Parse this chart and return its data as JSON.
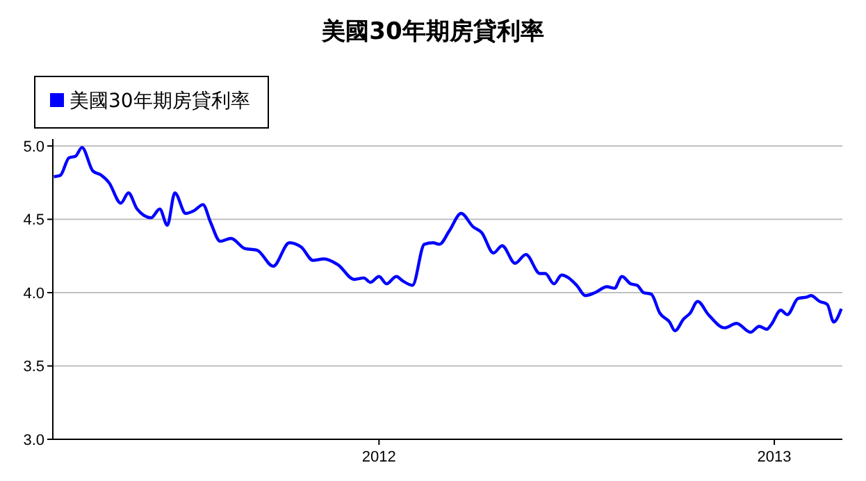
{
  "chart_data": {
    "type": "line",
    "title": "美國30年期房貸利率",
    "x": [
      "2011-03-06",
      "2011-03-12",
      "2011-03-20",
      "2011-03-26",
      "2011-04-01",
      "2011-04-11",
      "2011-04-19",
      "2011-04-26",
      "2011-05-07",
      "2011-05-14",
      "2011-05-22",
      "2011-06-04",
      "2011-06-12",
      "2011-06-19",
      "2011-06-26",
      "2011-07-06",
      "2011-07-14",
      "2011-07-22",
      "2011-07-29",
      "2011-08-07",
      "2011-08-17",
      "2011-08-30",
      "2011-09-10",
      "2011-09-25",
      "2011-10-10",
      "2011-10-21",
      "2011-11-01",
      "2011-11-11",
      "2011-11-24",
      "2011-12-09",
      "2011-12-18",
      "2011-12-24",
      "2012-01-01",
      "2012-01-08",
      "2012-01-17",
      "2012-01-23",
      "2012-02-01",
      "2012-02-12",
      "2012-02-20",
      "2012-02-26",
      "2012-03-06",
      "2012-03-17",
      "2012-03-28",
      "2012-04-05",
      "2012-04-16",
      "2012-04-24",
      "2012-05-06",
      "2012-05-16",
      "2012-05-29",
      "2012-06-03",
      "2012-06-11",
      "2012-06-18",
      "2012-07-02",
      "2012-07-10",
      "2012-07-19",
      "2012-07-30",
      "2012-08-06",
      "2012-08-13",
      "2012-08-21",
      "2012-08-27",
      "2012-09-02",
      "2012-09-09",
      "2012-09-17",
      "2012-09-26",
      "2012-10-01",
      "2012-10-09",
      "2012-10-15",
      "2012-10-22",
      "2012-11-01",
      "2012-11-16",
      "2012-11-27",
      "2012-12-10",
      "2012-12-18",
      "2012-12-25",
      "2012-12-29",
      "2013-01-07",
      "2013-01-13",
      "2013-01-23",
      "2013-01-31",
      "2013-02-04",
      "2013-02-12",
      "2013-02-19",
      "2013-02-25",
      "2013-03-04"
    ],
    "series": [
      {
        "name": "美國30年期房貸利率",
        "color": "#0000ff",
        "values": [
          4.79,
          4.8,
          4.92,
          4.93,
          4.99,
          4.83,
          4.8,
          4.75,
          4.61,
          4.68,
          4.57,
          4.51,
          4.57,
          4.46,
          4.68,
          4.54,
          4.56,
          4.6,
          4.48,
          4.35,
          4.37,
          4.3,
          4.29,
          4.18,
          4.34,
          4.31,
          4.22,
          4.23,
          4.19,
          4.09,
          4.1,
          4.07,
          4.11,
          4.06,
          4.11,
          4.08,
          4.05,
          4.33,
          4.34,
          4.33,
          4.42,
          4.54,
          4.45,
          4.41,
          4.27,
          4.32,
          4.2,
          4.26,
          4.13,
          4.13,
          4.06,
          4.12,
          4.05,
          3.98,
          4.0,
          4.04,
          4.03,
          4.11,
          4.06,
          4.05,
          4.0,
          3.99,
          3.86,
          3.8,
          3.74,
          3.82,
          3.86,
          3.94,
          3.85,
          3.76,
          3.79,
          3.73,
          3.77,
          3.75,
          3.78,
          3.88,
          3.85,
          3.96,
          3.97,
          3.98,
          3.94,
          3.92,
          3.8,
          3.89
        ]
      }
    ],
    "xlim": [
      "2011-03-05",
      "2013-03-05"
    ],
    "xticks": [
      {
        "value": "2012-01-01",
        "label": "2012"
      },
      {
        "value": "2013-01-01",
        "label": "2013"
      }
    ],
    "ylim": [
      3.0,
      5.0
    ],
    "yticks": [
      {
        "value": 3.0,
        "label": "3.0"
      },
      {
        "value": 3.5,
        "label": "3.5"
      },
      {
        "value": 4.0,
        "label": "4.0"
      },
      {
        "value": 4.5,
        "label": "4.5"
      },
      {
        "value": 5.0,
        "label": "5.0"
      }
    ],
    "grid": "y",
    "legend": "top left",
    "marker": "none",
    "line_style": "solid"
  }
}
